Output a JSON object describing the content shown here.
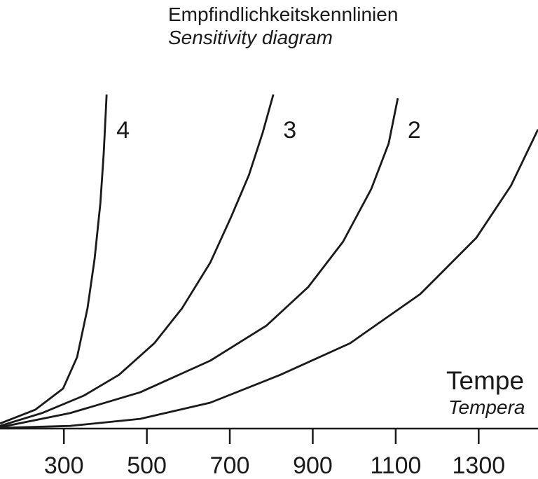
{
  "chart_data": {
    "type": "line",
    "title": "Empfindlichkeitskennlinien",
    "subtitle": "Sensitivity diagram",
    "x_label": "Tempe",
    "x_label_en": "Tempera",
    "xlim": [
      146,
      1443
    ],
    "ylim": [
      0,
      100
    ],
    "xticks": [
      300,
      500,
      700,
      900,
      1100,
      1300
    ],
    "color": "#1a1a1a",
    "series": [
      {
        "name": "4",
        "x": [
          146,
          231,
          298,
          332,
          357,
          374,
          388,
          396,
          401,
          403
        ],
        "values": [
          1.5,
          5.6,
          11.9,
          21.3,
          35.8,
          50.4,
          67.1,
          81.7,
          94.2,
          99.4
        ]
      },
      {
        "name": "3",
        "x": [
          146,
          247,
          348,
          433,
          518,
          585,
          653,
          703,
          746,
          779,
          805
        ],
        "values": [
          0.8,
          4.6,
          9.8,
          16.0,
          25.4,
          35.8,
          49.4,
          62.9,
          75.4,
          87.9,
          99.4
        ]
      },
      {
        "name": "2",
        "x": [
          146,
          315,
          484,
          653,
          788,
          889,
          973,
          1041,
          1083,
          1105
        ],
        "values": [
          0.4,
          4.6,
          10.8,
          20.2,
          30.6,
          42.1,
          55.6,
          71.3,
          84.8,
          98.3
        ]
      },
      {
        "x": [
          146,
          315,
          484,
          653,
          822,
          990,
          1159,
          1294,
          1378,
          1443
        ],
        "values": [
          0.2,
          0.8,
          2.9,
          7.7,
          16.0,
          25.4,
          40.0,
          56.7,
          72.3,
          89.0
        ]
      }
    ]
  }
}
